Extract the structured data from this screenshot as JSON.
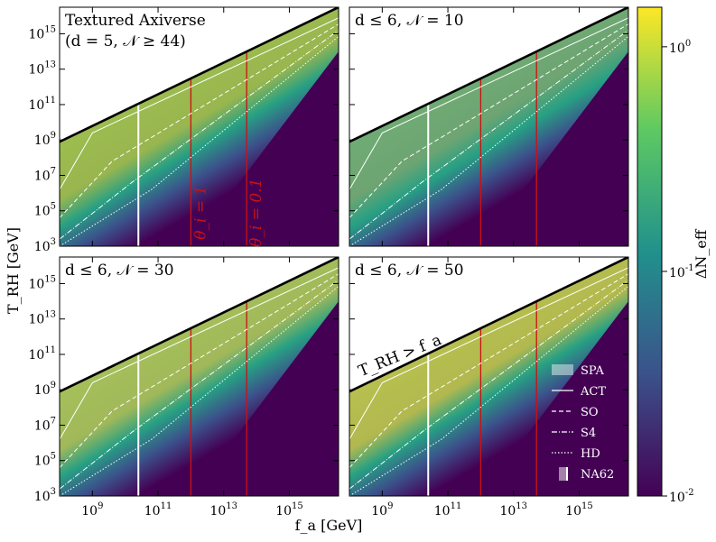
{
  "chart_data": {
    "type": "heatmap",
    "x_label": "f_a [GeV]",
    "y_label": "T_RH [GeV]",
    "x_scale": "log",
    "y_scale": "log",
    "xlim_log10": [
      8,
      16.5
    ],
    "ylim_log10": [
      3,
      16.5
    ],
    "x_ticks": [
      9,
      11,
      13,
      15
    ],
    "y_ticks": [
      3,
      5,
      7,
      9,
      11,
      13,
      15
    ],
    "colorbar": {
      "label": "ΔN_eff",
      "scale": "log",
      "range": [
        0.01,
        1.5
      ],
      "ticks": [
        {
          "v": 1,
          "label": "10^0"
        },
        {
          "v": 0.1,
          "label": "10^-1"
        },
        {
          "v": 0.01,
          "label": "10^-2"
        }
      ],
      "colors": [
        "#440154",
        "#3b528b",
        "#21918c",
        "#5ec962",
        "#fde725"
      ]
    },
    "boundary_line": {
      "name": "T_RH > f_a",
      "label": "T_RH > f_a",
      "color": "#000000"
    },
    "vertical_lines": [
      {
        "x_log10": 10.4,
        "color": "#ffffff"
      },
      {
        "x_log10": 12.0,
        "color": "#cc1111",
        "label": "θ_i = 1"
      },
      {
        "x_log10": 13.7,
        "color": "#cc1111",
        "label": "θ_i = 0.1"
      }
    ],
    "panels": [
      {
        "id": "top-left",
        "title_line1": "Textured Axiverse",
        "title_line2": "(d = 5, 𝒩 ≥ 44)",
        "fill_color": "#9dbf4f"
      },
      {
        "id": "top-right",
        "title_line1": "d ≤ 6, 𝒩 = 10",
        "title_line2": "",
        "fill_color": "#70ad74"
      },
      {
        "id": "bottom-left",
        "title_line1": "d ≤ 6, 𝒩 = 30",
        "title_line2": "",
        "fill_color": "#a6c25a"
      },
      {
        "id": "bottom-right",
        "title_line1": "d ≤ 6, 𝒩 = 50",
        "title_line2": "",
        "fill_color": "#b8c24f"
      }
    ],
    "legend": {
      "position": "lower-right of bottom-right panel",
      "entries": [
        {
          "label": "SPA",
          "style": "box"
        },
        {
          "label": "ACT",
          "style": "solid"
        },
        {
          "label": "SO",
          "style": "dashed"
        },
        {
          "label": "S4",
          "style": "dashdot"
        },
        {
          "label": "HD",
          "style": "dotted"
        },
        {
          "label": "NA62",
          "style": "bar"
        }
      ]
    },
    "tick_labels": {
      "x": [
        "10^9",
        "10^11",
        "10^13",
        "10^15"
      ],
      "y": [
        "10^3",
        "10^5",
        "10^7",
        "10^9",
        "10^11",
        "10^13",
        "10^15"
      ]
    }
  }
}
